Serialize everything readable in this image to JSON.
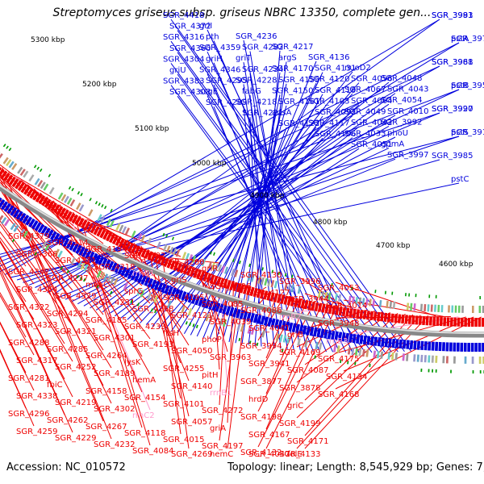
{
  "title": "Streptomyces griseus subsp. griseus NBRC 13350, complete gen...",
  "footer": {
    "accession": "Accession: NC_010572",
    "stats": "Topology: linear; Length: 8,545,929 bp; Genes: 7,222"
  },
  "colors": {
    "forward": "#0000dd",
    "reverse": "#ee0000",
    "rna": "#ff99cc",
    "backbone": "#888888"
  },
  "kbp_ticks": [
    "5300 kbp",
    "5200 kbp",
    "5100 kbp",
    "5000 kbp",
    "4900 kbp",
    "4800 kbp",
    "4700 kbp",
    "4600 kbp"
  ],
  "forward_labels": [
    "SGR_4418",
    "SGR_4372",
    "SGR_4316",
    "SGR_4360",
    "SGR_4304",
    "griU",
    "SGR_4383",
    "SGR_4303",
    "griI",
    "pth",
    "SGR_4359",
    "griH",
    "SGR_4346",
    "SGR_4295",
    "ssgE",
    "SGR_4289",
    "SGR_4236",
    "SGR_4282",
    "griT",
    "SGR_4234",
    "SGR_4228",
    "fabG",
    "SGR_4218",
    "SGR_4221",
    "SGR_4217",
    "argS",
    "SGR_4170",
    "SGR_4159",
    "SGR_4150",
    "SGR_4161",
    "adsA",
    "SGR_4122",
    "SGR_4136",
    "SGR_4131",
    "SGR_4120",
    "SGR_4119",
    "SGR_4103",
    "SGR_4092",
    "SGR_4117",
    "SGR_4106",
    "nuoD2",
    "SGR_4056",
    "SGR_4067",
    "SGR_4064",
    "SGR_4049",
    "SGR_4042",
    "SGR_4033",
    "SGR_4051",
    "SGR_4048",
    "SGR_4043",
    "SGR_4054",
    "SGR_4010",
    "SGR_3992",
    "phoU",
    "gpmA",
    "SGR_3997",
    "SGR_3991",
    "SGR_3977",
    "SGR_3968",
    "SGR_3957",
    "SGR_3990",
    "pstS",
    "SGR_3985",
    "pstC",
    "SGR_3983",
    "pstA",
    "SGR_3981",
    "pstB",
    "SGR_3927",
    "SGR_3919"
  ],
  "reverse_labels": [
    "SGR_4379",
    "SGR_4366",
    "SGR_4347",
    "SGR_4364",
    "SGR_4322",
    "SGR_4323",
    "SGR_4288",
    "SGR_4317",
    "SGR_4281",
    "SGR_4338",
    "SGR_4296",
    "SGR_4259",
    "SGR_4314",
    "SGR_4271",
    "SGR_4237",
    "SGR_4329",
    "SGR_4294",
    "SGR_4321",
    "SGR_4285",
    "SGR_4252",
    "fbiC",
    "SGR_4219",
    "SGR_4262",
    "SGR_4229",
    "SGR_4194",
    "SGR_4318",
    "moaC",
    "SGR_4231",
    "SGR_4185",
    "SGR_4301",
    "SGR_4264",
    "SGR_4189",
    "SGR_4158",
    "SGR_4302",
    "SGR_4267",
    "SGR_4232",
    "SGR_4192",
    "rrnC1",
    "sprG",
    "SGR_4268",
    "SGR_4233",
    "SGR_4193",
    "lysK",
    "hemA",
    "SGR_4154",
    "rrnC2",
    "SGR_4118",
    "SGR_4084",
    "SGR_4260",
    "griS",
    "SGR_4195",
    "SGR_4121",
    "ftsH",
    "SGR_4050",
    "SGR_4255",
    "SGR_4140",
    "SGR_4101",
    "SGR_4057",
    "SGR_4015",
    "SGR_4269",
    "griR",
    "SGR_4196",
    "SGR_4085",
    "SGR_4039",
    "phoP",
    "SGR_3963",
    "pitH",
    "rrnB1",
    "SGR_4272",
    "griA",
    "SGR_4197",
    "hemC",
    "SGR_4130",
    "SGR_4127",
    "SGR_4086",
    "SGR_4041",
    "SGR_3994",
    "SGR_3941",
    "SGR_3877",
    "hrdD",
    "SGR_4198",
    "SGR_4167",
    "SGR_4132",
    "SGR_4047",
    "SGR_3996",
    "SGR_3944",
    "rrnB2",
    "griB",
    "SGR_4169",
    "SGR_4087",
    "SGR_3878",
    "griC",
    "SGR_4199",
    "SGR_4171",
    "SGR_4133",
    "folE",
    "SGR_4053",
    "SGR_4014",
    "SGR_3948",
    "rrnB3",
    "SGR_4175",
    "SGR_4134",
    "SGR_4168"
  ]
}
